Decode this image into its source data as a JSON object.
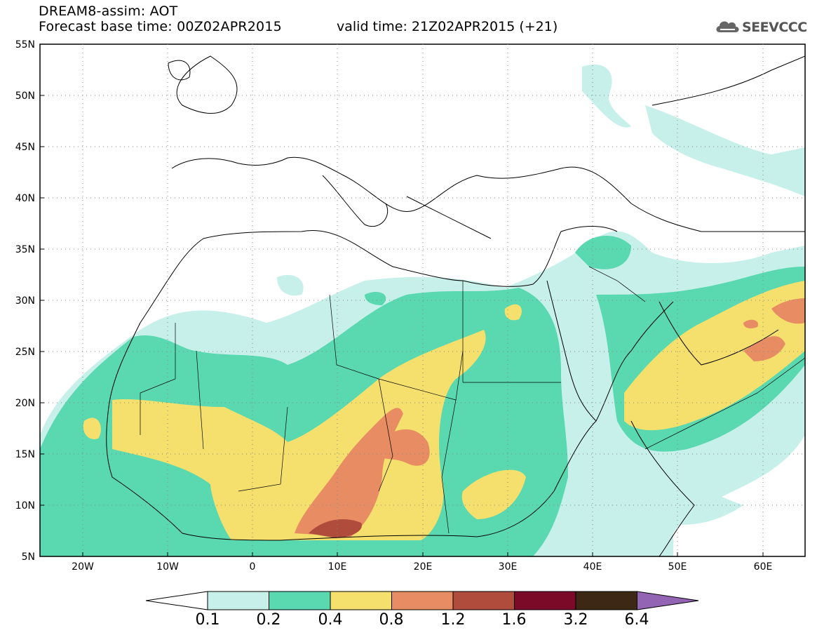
{
  "header": {
    "title": "DREAM8-assim: AOT",
    "base_time": "Forecast base time: 00Z02APR2015",
    "valid_time": "valid time: 21Z02APR2015 (+21)",
    "logo_text": "SEEVCCC"
  },
  "map": {
    "lat_labels": [
      "55N",
      "50N",
      "45N",
      "40N",
      "35N",
      "30N",
      "25N",
      "20N",
      "15N",
      "10N",
      "5N"
    ],
    "lon_labels": [
      "20W",
      "10W",
      "0",
      "10E",
      "20E",
      "30E",
      "40E",
      "50E",
      "60E"
    ],
    "lat_range": [
      5,
      55
    ],
    "lon_range": [
      -25,
      65
    ],
    "field": "Aerosol Optical Thickness"
  },
  "colorbar": {
    "labels": [
      "0.1",
      "0.2",
      "0.4",
      "0.8",
      "1.2",
      "1.6",
      "3.2",
      "6.4"
    ],
    "colors": [
      "#ffffff",
      "#c8f0ea",
      "#5ad8b0",
      "#f5e06e",
      "#e88c64",
      "#b04c3c",
      "#7a0a28",
      "#3c2814",
      "#9464b4"
    ]
  }
}
